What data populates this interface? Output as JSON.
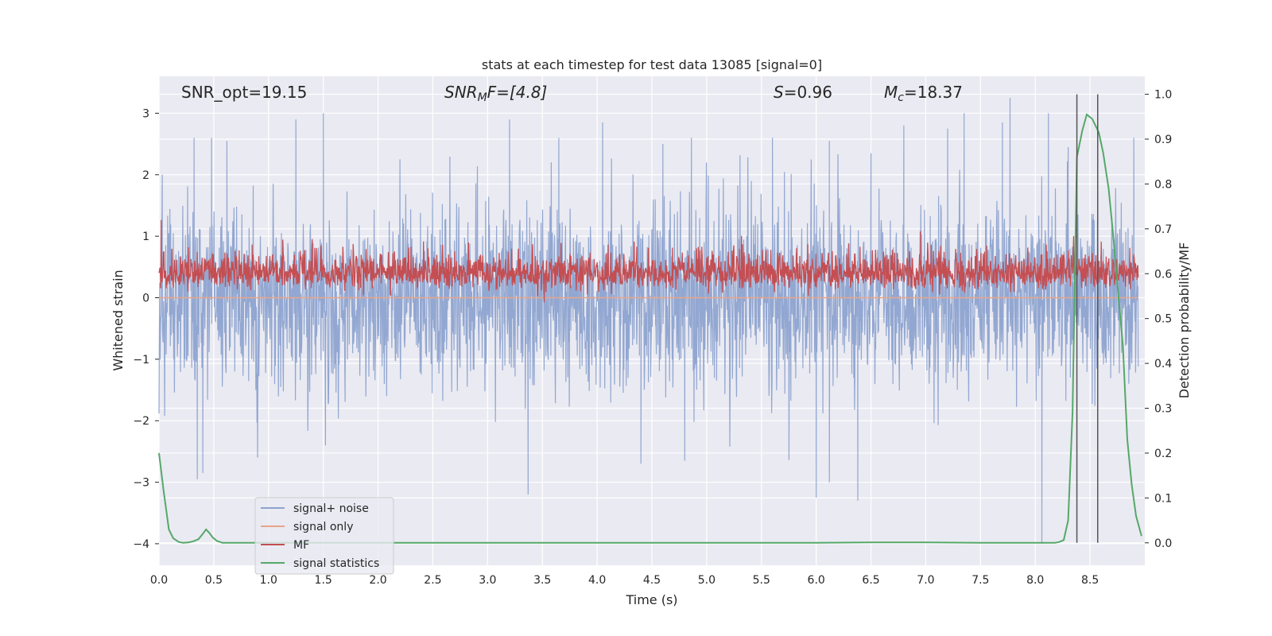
{
  "chart_data": {
    "type": "line",
    "title": "stats at each timestep for test data 13085 [signal=0]",
    "xlabel": "Time (s)",
    "ylabel": "Whitened strain",
    "y2label": "Detection probability/MF",
    "xlim": [
      0.0,
      9.0
    ],
    "ylim": [
      -4.35,
      3.6
    ],
    "y2lim": [
      -0.05,
      1.04
    ],
    "x_ticks": [
      "0.0",
      "0.5",
      "1.0",
      "1.5",
      "2.0",
      "2.5",
      "3.0",
      "3.5",
      "4.0",
      "4.5",
      "5.0",
      "5.5",
      "6.0",
      "6.5",
      "7.0",
      "7.5",
      "8.0",
      "8.5"
    ],
    "y_ticks": [
      "3",
      "2",
      "1",
      "0",
      "−1",
      "−2",
      "−3",
      "−4"
    ],
    "y2_ticks": [
      "1.0",
      "0.9",
      "0.8",
      "0.7",
      "0.6",
      "0.5",
      "0.4",
      "0.3",
      "0.2",
      "0.1",
      "0.0"
    ],
    "grid": true,
    "legend_position": "lower-left",
    "annotations": {
      "snr_opt": "SNR_opt=19.15",
      "snr_mf_main": "SNR",
      "snr_mf_sub": "M",
      "snr_mf_rest": "F=[4.8]",
      "s_main": "S",
      "s_rest": "=0.96",
      "mc_main": "M",
      "mc_sub": "c",
      "mc_rest": "=18.37"
    },
    "series": [
      {
        "name": "signal+ noise",
        "color": "#8da3cf",
        "axis": "left",
        "description_values": "dense white-noise strain, amplitude ~±1.7, peaks up to ~±3.2",
        "envelope_peaks": [
          [
            0.03,
            2.0
          ],
          [
            0.32,
            2.6
          ],
          [
            0.35,
            -2.95
          ],
          [
            0.4,
            -2.85
          ],
          [
            0.48,
            2.6
          ],
          [
            0.62,
            2.55
          ],
          [
            0.9,
            -2.6
          ],
          [
            1.25,
            2.9
          ],
          [
            1.5,
            3.0
          ],
          [
            1.52,
            -2.4
          ],
          [
            2.2,
            2.25
          ],
          [
            3.2,
            2.9
          ],
          [
            3.37,
            -3.2
          ],
          [
            3.65,
            2.6
          ],
          [
            4.05,
            2.85
          ],
          [
            4.4,
            -2.7
          ],
          [
            4.6,
            2.5
          ],
          [
            4.8,
            -2.65
          ],
          [
            5.6,
            2.6
          ],
          [
            6.0,
            -3.25
          ],
          [
            6.12,
            2.55
          ],
          [
            6.12,
            -3.0
          ],
          [
            6.38,
            -3.3
          ],
          [
            6.5,
            2.35
          ],
          [
            6.8,
            2.8
          ],
          [
            7.2,
            2.75
          ],
          [
            7.35,
            3.0
          ],
          [
            7.7,
            2.85
          ],
          [
            7.77,
            3.25
          ],
          [
            8.06,
            -4.0
          ],
          [
            8.12,
            3.0
          ],
          [
            8.3,
            2.45
          ],
          [
            8.9,
            2.6
          ]
        ],
        "amplitude": 1.7
      },
      {
        "name": "signal only",
        "color": "#e8a58a",
        "axis": "left",
        "x": [
          0.0,
          9.0
        ],
        "y": [
          0.0,
          0.0
        ]
      },
      {
        "name": "MF",
        "color": "#c44e52",
        "axis": "right",
        "baseline": 0.6,
        "amplitude": 0.035,
        "peaks": [
          [
            0.02,
            0.72
          ],
          [
            0.85,
            0.665
          ],
          [
            1.4,
            0.66
          ],
          [
            2.3,
            0.66
          ],
          [
            4.1,
            0.665
          ],
          [
            5.3,
            0.655
          ],
          [
            6.4,
            0.66
          ],
          [
            6.95,
            0.695
          ],
          [
            7.05,
            0.665
          ],
          [
            8.1,
            0.665
          ]
        ]
      },
      {
        "name": "signal statistics",
        "color": "#55a868",
        "axis": "right",
        "x": [
          0.0,
          0.04,
          0.09,
          0.13,
          0.18,
          0.22,
          0.27,
          0.31,
          0.36,
          0.4,
          0.43,
          0.46,
          0.49,
          0.53,
          0.58,
          1.0,
          2.0,
          3.0,
          4.0,
          5.0,
          6.0,
          6.5,
          7.0,
          7.5,
          8.0,
          8.1,
          8.18,
          8.22,
          8.26,
          8.3,
          8.34,
          8.38,
          8.43,
          8.47,
          8.52,
          8.58,
          8.62,
          8.67,
          8.71,
          8.75,
          8.8,
          8.84,
          8.88,
          8.92,
          8.97
        ],
        "y": [
          0.2,
          0.12,
          0.03,
          0.01,
          0.002,
          0.0,
          0.001,
          0.003,
          0.008,
          0.02,
          0.03,
          0.022,
          0.012,
          0.004,
          0.0,
          0.0,
          0.0,
          0.0,
          0.0,
          0.0,
          0.0,
          0.001,
          0.001,
          0.0,
          0.0,
          0.0,
          0.0,
          0.002,
          0.006,
          0.05,
          0.29,
          0.86,
          0.92,
          0.955,
          0.945,
          0.915,
          0.87,
          0.79,
          0.69,
          0.575,
          0.44,
          0.23,
          0.13,
          0.06,
          0.015
        ]
      }
    ],
    "vlines": [
      {
        "x": 8.38,
        "y2_range": [
          0.0,
          1.0
        ],
        "color": "#555555"
      },
      {
        "x": 8.57,
        "y2_range": [
          0.0,
          1.0
        ],
        "color": "#555555"
      }
    ],
    "legend": [
      "signal+ noise",
      "signal only",
      "MF",
      "signal statistics"
    ]
  }
}
